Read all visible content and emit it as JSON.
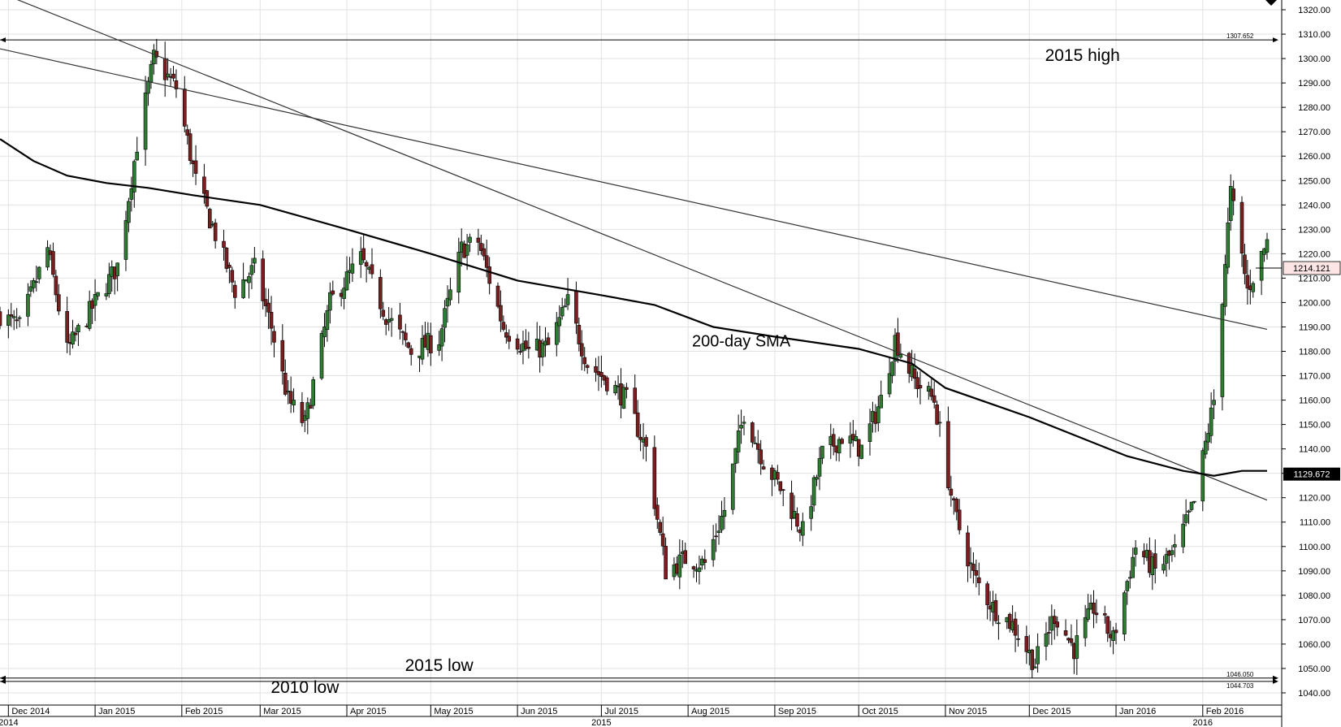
{
  "chart_data": {
    "type": "candlestick",
    "title": "",
    "xlabel": "",
    "ylabel": "",
    "ylim": [
      1035,
      1324
    ],
    "grid": true,
    "y_ticks": [
      "1040.00",
      "1050.00",
      "1060.00",
      "1070.00",
      "1080.00",
      "1090.00",
      "1100.00",
      "1110.00",
      "1120.00",
      "1130.00",
      "1140.00",
      "1150.00",
      "1160.00",
      "1170.00",
      "1180.00",
      "1190.00",
      "1200.00",
      "1210.00",
      "1220.00",
      "1230.00",
      "1240.00",
      "1250.00",
      "1260.00",
      "1270.00",
      "1280.00",
      "1290.00",
      "1300.00",
      "1310.00",
      "1320.00"
    ],
    "y_tick_values": [
      1040,
      1050,
      1060,
      1070,
      1080,
      1090,
      1100,
      1110,
      1120,
      1130,
      1140,
      1150,
      1160,
      1170,
      1180,
      1190,
      1200,
      1210,
      1220,
      1230,
      1240,
      1250,
      1260,
      1270,
      1280,
      1290,
      1300,
      1310,
      1320
    ],
    "months": [
      {
        "label": "Dec 2014",
        "date": "2014-12-01"
      },
      {
        "label": "Jan 2015",
        "date": "2015-01-01"
      },
      {
        "label": "Feb 2015",
        "date": "2015-02-01"
      },
      {
        "label": "Mar 2015",
        "date": "2015-03-01"
      },
      {
        "label": "Apr 2015",
        "date": "2015-04-01"
      },
      {
        "label": "May 2015",
        "date": "2015-05-01"
      },
      {
        "label": "Jun 2015",
        "date": "2015-06-01"
      },
      {
        "label": "Jul 2015",
        "date": "2015-07-01"
      },
      {
        "label": "Aug 2015",
        "date": "2015-08-01"
      },
      {
        "label": "Sep 2015",
        "date": "2015-09-01"
      },
      {
        "label": "Oct 2015",
        "date": "2015-10-01"
      },
      {
        "label": "Nov 2015",
        "date": "2015-11-01"
      },
      {
        "label": "Dec 2015",
        "date": "2015-12-01"
      },
      {
        "label": "Jan 2016",
        "date": "2016-01-01"
      },
      {
        "label": "Feb 2016",
        "date": "2016-02-01"
      }
    ],
    "years": [
      {
        "label": "2014",
        "date": "2014-12-01"
      },
      {
        "label": "2015",
        "date": "2015-07-01"
      },
      {
        "label": "2016",
        "date": "2016-02-01"
      }
    ],
    "date_range": [
      "2014-11-28",
      "2016-02-24"
    ],
    "price_path": [
      [
        "2014-11-28",
        1195
      ],
      [
        "2014-12-05",
        1190
      ],
      [
        "2014-12-15",
        1222
      ],
      [
        "2014-12-22",
        1180
      ],
      [
        "2014-12-31",
        1198
      ],
      [
        "2015-01-09",
        1215
      ],
      [
        "2015-01-16",
        1265
      ],
      [
        "2015-01-22",
        1300
      ],
      [
        "2015-01-30",
        1288
      ],
      [
        "2015-02-06",
        1250
      ],
      [
        "2015-02-13",
        1228
      ],
      [
        "2015-02-20",
        1205
      ],
      [
        "2015-02-27",
        1214
      ],
      [
        "2015-03-05",
        1190
      ],
      [
        "2015-03-11",
        1160
      ],
      [
        "2015-03-17",
        1150
      ],
      [
        "2015-03-26",
        1200
      ],
      [
        "2015-04-06",
        1218
      ],
      [
        "2015-04-15",
        1195
      ],
      [
        "2015-04-24",
        1180
      ],
      [
        "2015-05-04",
        1185
      ],
      [
        "2015-05-12",
        1222
      ],
      [
        "2015-05-18",
        1225
      ],
      [
        "2015-05-27",
        1190
      ],
      [
        "2015-06-05",
        1180
      ],
      [
        "2015-06-12",
        1182
      ],
      [
        "2015-06-19",
        1200
      ],
      [
        "2015-06-26",
        1175
      ],
      [
        "2015-07-03",
        1168
      ],
      [
        "2015-07-10",
        1160
      ],
      [
        "2015-07-17",
        1140
      ],
      [
        "2015-07-24",
        1090
      ],
      [
        "2015-07-31",
        1095
      ],
      [
        "2015-08-07",
        1093
      ],
      [
        "2015-08-14",
        1115
      ],
      [
        "2015-08-21",
        1155
      ],
      [
        "2015-08-28",
        1135
      ],
      [
        "2015-09-04",
        1122
      ],
      [
        "2015-09-11",
        1106
      ],
      [
        "2015-09-18",
        1138
      ],
      [
        "2015-09-25",
        1145
      ],
      [
        "2015-10-02",
        1140
      ],
      [
        "2015-10-09",
        1160
      ],
      [
        "2015-10-14",
        1185
      ],
      [
        "2015-10-21",
        1168
      ],
      [
        "2015-10-28",
        1160
      ],
      [
        "2015-11-04",
        1115
      ],
      [
        "2015-11-11",
        1088
      ],
      [
        "2015-11-18",
        1075
      ],
      [
        "2015-11-25",
        1068
      ],
      [
        "2015-12-03",
        1052
      ],
      [
        "2015-12-10",
        1072
      ],
      [
        "2015-12-17",
        1058
      ],
      [
        "2015-12-24",
        1075
      ],
      [
        "2015-12-31",
        1062
      ],
      [
        "2016-01-08",
        1100
      ],
      [
        "2016-01-15",
        1090
      ],
      [
        "2016-01-22",
        1098
      ],
      [
        "2016-01-29",
        1118
      ],
      [
        "2016-02-05",
        1160
      ],
      [
        "2016-02-11",
        1245
      ],
      [
        "2016-02-17",
        1205
      ],
      [
        "2016-02-24",
        1225
      ]
    ],
    "last_price": "1214.121",
    "sma": {
      "label": "200-day SMA",
      "last_value": "1129.672",
      "points": [
        [
          "2014-11-28",
          1267
        ],
        [
          "2014-12-10",
          1258
        ],
        [
          "2014-12-22",
          1252
        ],
        [
          "2015-01-05",
          1249
        ],
        [
          "2015-01-20",
          1247
        ],
        [
          "2015-02-05",
          1244
        ],
        [
          "2015-03-01",
          1240
        ],
        [
          "2015-04-01",
          1230
        ],
        [
          "2015-05-01",
          1220
        ],
        [
          "2015-06-01",
          1209
        ],
        [
          "2015-07-01",
          1203
        ],
        [
          "2015-07-20",
          1199
        ],
        [
          "2015-08-10",
          1190
        ],
        [
          "2015-09-01",
          1186
        ],
        [
          "2015-10-01",
          1181
        ],
        [
          "2015-10-20",
          1175
        ],
        [
          "2015-11-01",
          1165
        ],
        [
          "2015-12-01",
          1153
        ],
        [
          "2016-01-05",
          1137
        ],
        [
          "2016-01-25",
          1131
        ],
        [
          "2016-02-05",
          1129
        ],
        [
          "2016-02-15",
          1131
        ],
        [
          "2016-02-24",
          1131
        ]
      ]
    },
    "horizontal_levels": [
      {
        "value": 1307.652,
        "label": "1307.652"
      },
      {
        "value": 1046.05,
        "label": "1046.050"
      },
      {
        "value": 1044.703,
        "label": "1044.703"
      }
    ],
    "trendlines": [
      {
        "from": [
          "2014-11-28",
          1327
        ],
        "to": [
          "2016-02-24",
          1119
        ]
      },
      {
        "from": [
          "2014-11-28",
          1304
        ],
        "to": [
          "2016-02-24",
          1189
        ]
      }
    ],
    "annotations": [
      {
        "text": "2015 high",
        "at": [
          "2015-12-20",
          1299
        ],
        "size": 21
      },
      {
        "text": "200-day SMA",
        "at": [
          "2015-08-20",
          1182
        ],
        "size": 20
      },
      {
        "text": "2015 low",
        "at": [
          "2015-05-04",
          1049
        ],
        "size": 21
      },
      {
        "text": "2010 low",
        "at": [
          "2015-03-17",
          1040
        ],
        "size": 21
      }
    ],
    "colors": {
      "up": "#2e7d32",
      "down": "#7a1f1f",
      "grid": "#e2e2e2",
      "axis": "#000000",
      "line": "#000000",
      "last_price_box": "#fde5e5",
      "sma_box": "#000000"
    }
  }
}
